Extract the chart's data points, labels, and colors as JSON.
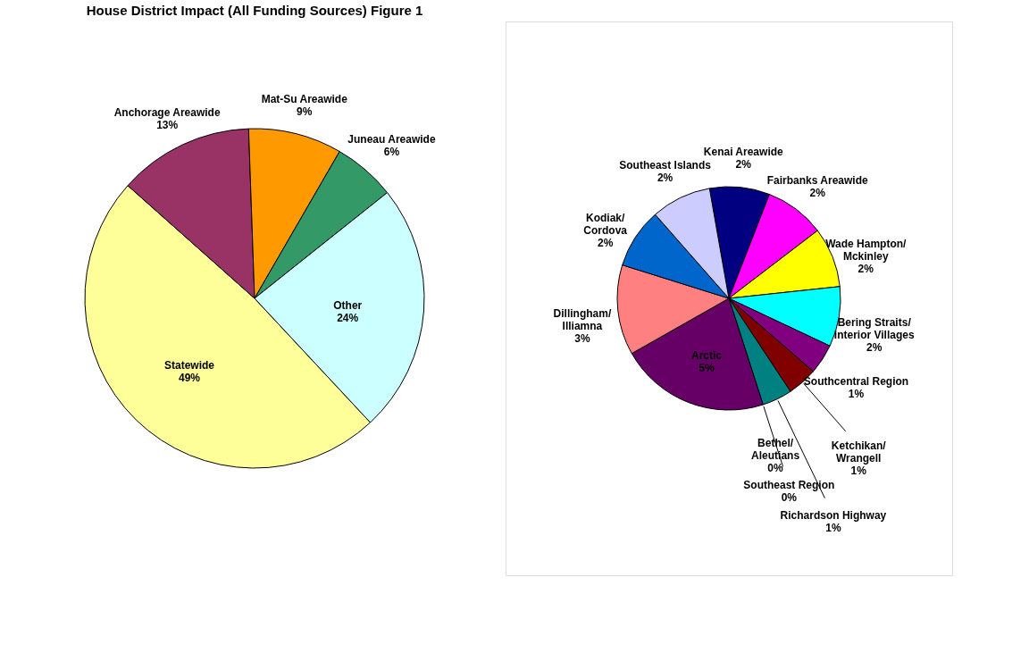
{
  "chart_data": [
    {
      "type": "pie",
      "title": "House District Impact  (All Funding Sources) Figure 1",
      "categories": [
        "Statewide",
        "Anchorage Areawide",
        "Mat-Su Areawide",
        "Juneau Areawide",
        "Other"
      ],
      "values": [
        49,
        13,
        9,
        6,
        24
      ],
      "value_labels": [
        "49%",
        "13%",
        "9%",
        "6%",
        "24%"
      ],
      "colors": [
        "#ffff99",
        "#993366",
        "#ff9900",
        "#339966",
        "#ccffff"
      ]
    },
    {
      "type": "pie",
      "categories": [
        "Kenai Areawide",
        "Fairbanks Areawide",
        "Wade Hampton/ Mckinley",
        "Bering Straits/ Interior Villages",
        "Southcentral Region",
        "Ketchikan/ Wrangell",
        "Richardson Highway",
        "Bethel/ Aleutians",
        "Southeast Region",
        "Arctic",
        "Dillingham/ Illiamna",
        "Kodiak/ Cordova",
        "Southeast Islands"
      ],
      "values": [
        2,
        2,
        2,
        2,
        1,
        1,
        1,
        0,
        0,
        5,
        3,
        2,
        2
      ],
      "value_labels": [
        "2%",
        "2%",
        "2%",
        "2%",
        "1%",
        "1%",
        "1%",
        "0%",
        "0%",
        "5%",
        "3%",
        "2%",
        "2%"
      ],
      "colors": [
        "#000080",
        "#ff00ff",
        "#ffff00",
        "#00ffff",
        "#800080",
        "#800000",
        "#008080",
        "#0000ff",
        "#3366ff",
        "#660066",
        "#ff8080",
        "#0066cc",
        "#ccccff"
      ]
    }
  ]
}
